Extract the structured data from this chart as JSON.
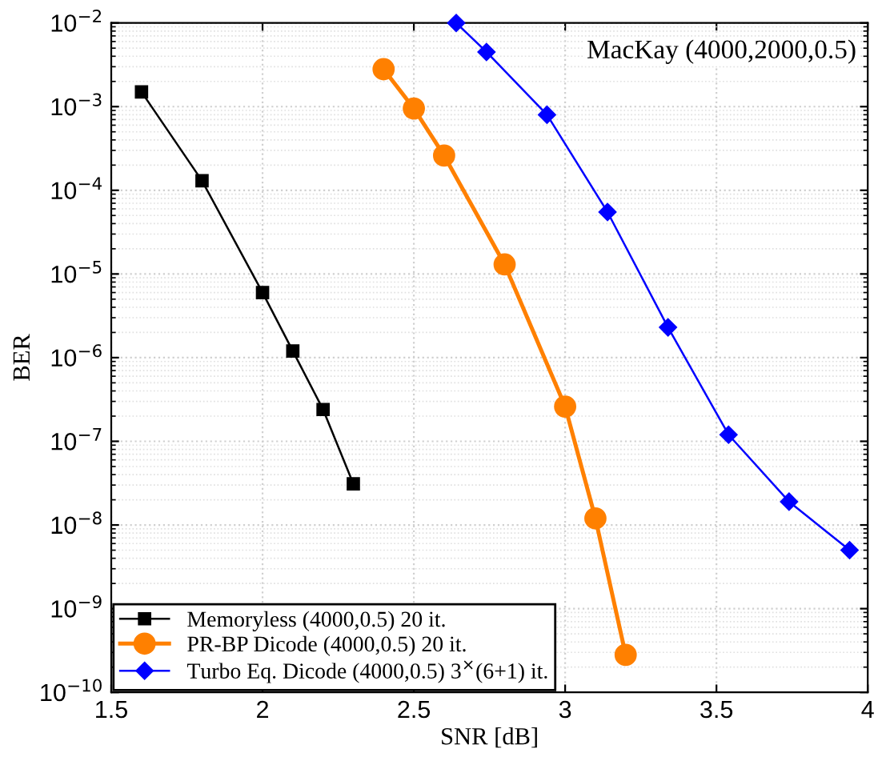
{
  "chart_data": {
    "type": "line",
    "xlabel": "SNR [dB]",
    "ylabel": "BER",
    "log": "y",
    "xlim": [
      1.5,
      4
    ],
    "xticks": [
      1.5,
      2,
      2.5,
      3,
      3.5,
      4
    ],
    "ylim": [
      1e-10,
      0.01
    ],
    "yticks": [
      {
        "value": 1e-10,
        "label": "10$^{−10}$"
      },
      {
        "value": 1e-09,
        "label": "10$^{−9}$"
      },
      {
        "value": 1e-08,
        "label": "10$^{−8}$"
      },
      {
        "value": 1e-07,
        "label": "10$^{−7}$"
      },
      {
        "value": 1e-06,
        "label": "10$^{−6}$"
      },
      {
        "value": 1e-05,
        "label": "10$^{−5}$"
      },
      {
        "value": 0.0001,
        "label": "10$^{−4}$"
      },
      {
        "value": 0.001,
        "label": "10$^{−3}$"
      },
      {
        "value": 0.01,
        "label": "10$^{−2}$"
      }
    ],
    "grid": true,
    "legend": "bottom left",
    "annotations": [
      "MacKay (4000,2000,0.5)"
    ],
    "series": [
      {
        "name": "Memoryless (4000,0.5) 20 it.",
        "color": "#000000",
        "marker": "square",
        "x": [
          1.6,
          1.8,
          2.0,
          2.1,
          2.2,
          2.3
        ],
        "values": [
          0.0015,
          0.00013,
          6e-06,
          1.2e-06,
          2.4e-07,
          3.1e-08
        ]
      },
      {
        "name": "PR-BP Dicode (4000,0.5) 20 it.",
        "color": "#ff8000",
        "marker": "circle",
        "x": [
          2.4,
          2.5,
          2.6,
          2.8,
          3.0,
          3.1,
          3.2
        ],
        "values": [
          0.0028,
          0.00095,
          0.00026,
          1.3e-05,
          2.6e-07,
          1.2e-08,
          2.8e-10
        ]
      },
      {
        "name": "Turbo Eq. Dicode (4000,0.5) 3$^{×}$(6+1) it.",
        "color": "#0000ff",
        "marker": "diamond",
        "x": [
          2.64,
          2.74,
          2.94,
          3.14,
          3.34,
          3.54,
          3.74,
          3.94
        ],
        "values": [
          0.01,
          0.0045,
          0.0008,
          5.5e-05,
          2.3e-06,
          1.2e-07,
          1.9e-08,
          5e-09
        ]
      }
    ]
  }
}
